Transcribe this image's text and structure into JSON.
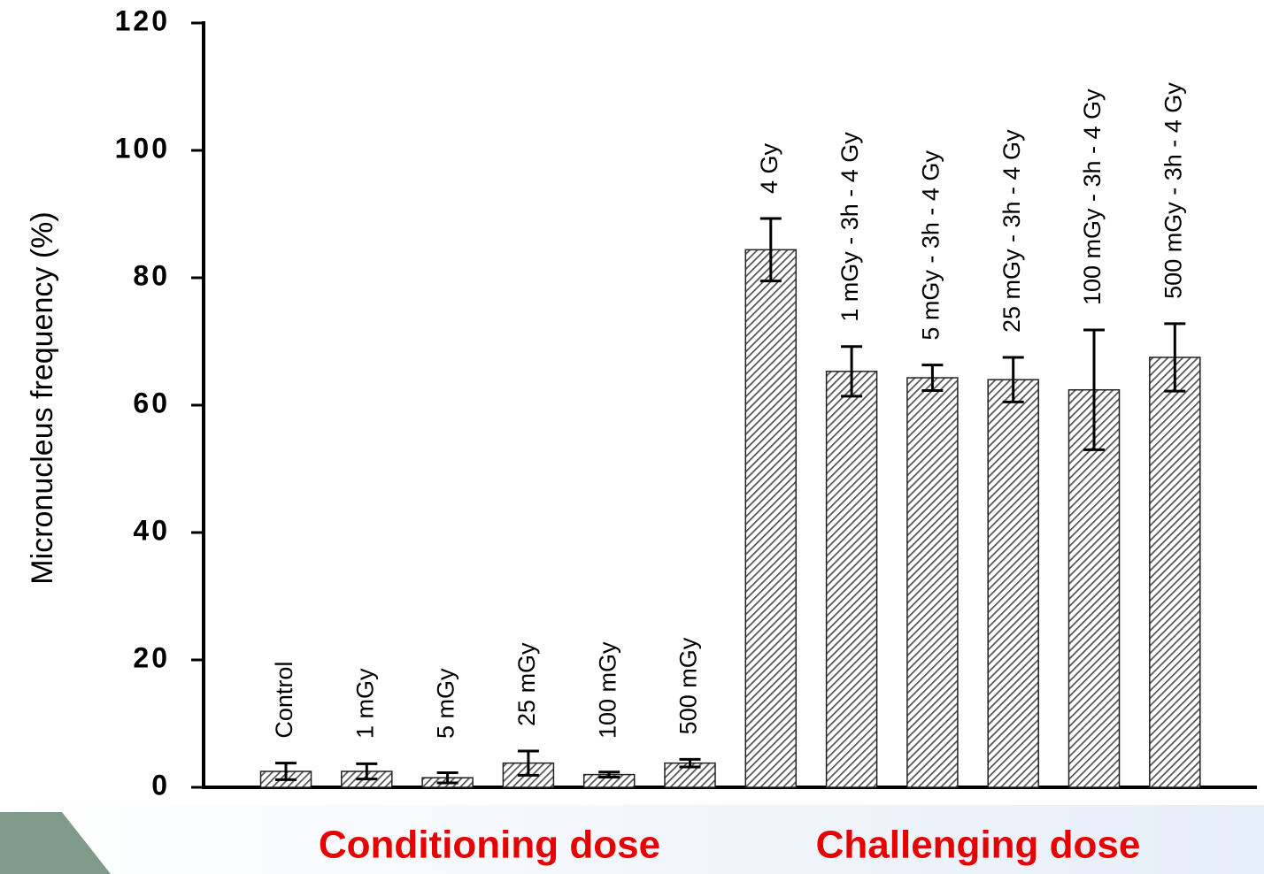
{
  "chart_data": {
    "type": "bar",
    "y_label": "Micronucleus frequency (%)",
    "categories": [
      "Control",
      "1 mGy",
      "5 mGy",
      "25 mGy",
      "100 mGy",
      "500 mGy",
      "4 Gy",
      "1 mGy - 3h - 4 Gy",
      "5 mGy - 3h - 4 Gy",
      "25 mGy - 3h - 4 Gy",
      "100 mGy - 3h - 4 Gy",
      "500 mGy - 3h - 4 Gy"
    ],
    "values": [
      2.5,
      2.5,
      1.5,
      3.8,
      2,
      3.8,
      84.4,
      65.3,
      64.3,
      64,
      62.4,
      67.5
    ],
    "errors": [
      1.3,
      1.2,
      0.8,
      1.9,
      0.4,
      0.6,
      4.9,
      3.9,
      2,
      3.5,
      9.4,
      5.3
    ],
    "color": "#555555",
    "ylim": [
      0,
      120
    ],
    "yticks": [
      0,
      20,
      40,
      60,
      80,
      100,
      120
    ],
    "annotations": [
      {
        "text": "Conditioning dose",
        "color": "#e60000"
      },
      {
        "text": "Challenging dose",
        "color": "#e60000"
      }
    ]
  }
}
